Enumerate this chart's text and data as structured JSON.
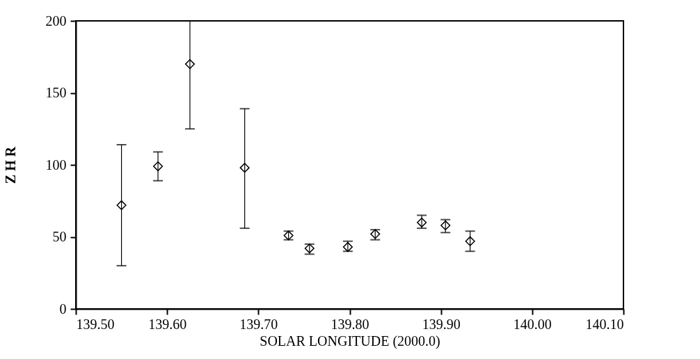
{
  "chart_data": {
    "type": "scatter",
    "xlabel": "SOLAR LONGITUDE (2000.0)",
    "ylabel": "Z H R",
    "x": [
      139.55,
      139.59,
      139.625,
      139.685,
      139.733,
      139.756,
      139.798,
      139.828,
      139.879,
      139.905,
      139.932
    ],
    "values": [
      72,
      99,
      170,
      98,
      51,
      42,
      43,
      52,
      60,
      58,
      47
    ],
    "errors": [
      [
        30,
        114
      ],
      [
        89,
        109
      ],
      [
        125,
        200
      ],
      [
        56,
        139
      ],
      [
        48,
        54
      ],
      [
        38,
        45
      ],
      [
        40,
        47
      ],
      [
        48,
        55
      ],
      [
        56,
        65
      ],
      [
        53,
        62
      ],
      [
        40,
        54
      ]
    ],
    "color": "#000000",
    "marker": "diamond",
    "xlim": [
      139.5,
      140.1
    ],
    "xticks": [
      {
        "value": 139.5,
        "label": "139.50"
      },
      {
        "value": 139.6,
        "label": "139.60"
      },
      {
        "value": 139.7,
        "label": "139.70"
      },
      {
        "value": 139.8,
        "label": "139.80"
      },
      {
        "value": 139.9,
        "label": "139.90"
      },
      {
        "value": 140.0,
        "label": "140.00"
      },
      {
        "value": 140.1,
        "label": "140.10"
      }
    ],
    "ylim": [
      0,
      200
    ],
    "yticks": [
      0,
      50,
      100,
      150,
      200
    ],
    "grid": false
  }
}
